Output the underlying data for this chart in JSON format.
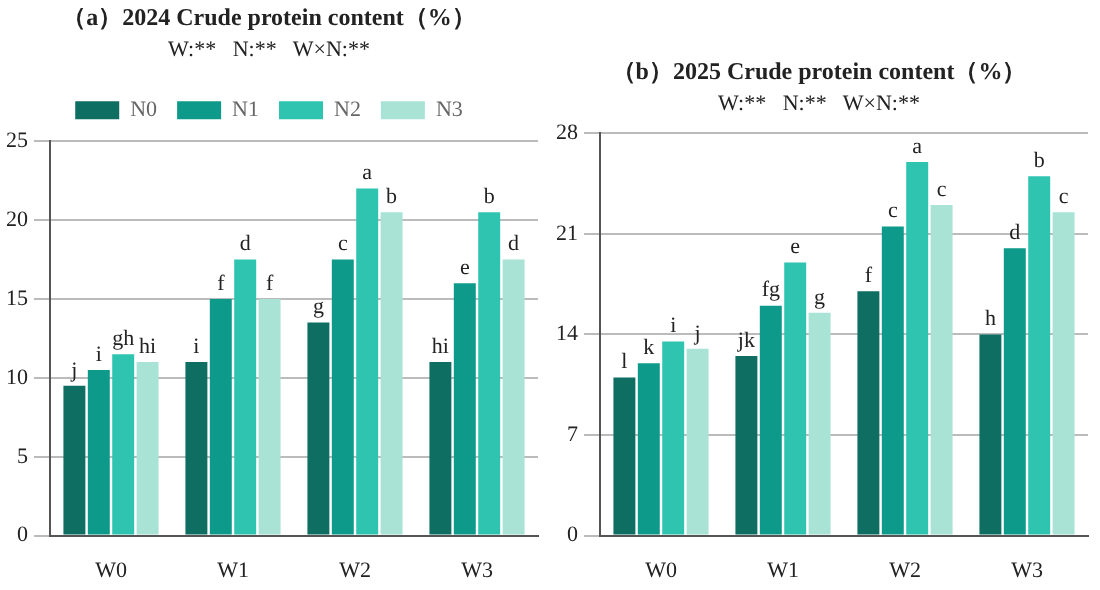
{
  "chart_data": [
    {
      "type": "bar",
      "title": "（a）2024 Crude protein content（%）",
      "subtitle": "W:**   N:**   W×N:**",
      "categories": [
        "W0",
        "W1",
        "W2",
        "W3"
      ],
      "ylim": [
        0,
        25
      ],
      "yticks": [
        0,
        5,
        10,
        15,
        20,
        25
      ],
      "grid": "y",
      "legend": "top",
      "series": [
        {
          "name": "N0",
          "color": "#0e6e62",
          "values": [
            9.5,
            11,
            13.5,
            11
          ],
          "value_labels": [
            "j",
            "i",
            "g",
            "hi"
          ]
        },
        {
          "name": "N1",
          "color": "#0d9a8a",
          "values": [
            10.5,
            15,
            17.5,
            16
          ],
          "value_labels": [
            "i",
            "f",
            "c",
            "e"
          ]
        },
        {
          "name": "N2",
          "color": "#2ec4b0",
          "values": [
            11.5,
            17.5,
            22,
            20.5
          ],
          "value_labels": [
            "gh",
            "d",
            "a",
            "b"
          ]
        },
        {
          "name": "N3",
          "color": "#a8e3d6",
          "values": [
            11,
            15,
            20.5,
            17.5
          ],
          "value_labels": [
            "hi",
            "f",
            "b",
            "d"
          ]
        }
      ]
    },
    {
      "type": "bar",
      "title": "（b）2025 Crude protein content（%）",
      "subtitle": "W:**   N:**   W×N:**",
      "categories": [
        "W0",
        "W1",
        "W2",
        "W3"
      ],
      "ylim": [
        0,
        28
      ],
      "yticks": [
        0,
        7,
        14,
        21,
        28
      ],
      "grid": "y",
      "series": [
        {
          "color": "#0e6e62",
          "values": [
            11,
            12.5,
            17,
            14
          ],
          "value_labels": [
            "l",
            "jk",
            "f",
            "h"
          ]
        },
        {
          "color": "#0d9a8a",
          "values": [
            12,
            16,
            21.5,
            20
          ],
          "value_labels": [
            "k",
            "fg",
            "c",
            "d"
          ]
        },
        {
          "color": "#2ec4b0",
          "values": [
            13.5,
            19,
            26,
            25
          ],
          "value_labels": [
            "i",
            "e",
            "a",
            "b"
          ]
        },
        {
          "color": "#a8e3d6",
          "values": [
            13,
            15.5,
            23,
            22.5
          ],
          "value_labels": [
            "j",
            "g",
            "c",
            "c"
          ]
        }
      ]
    }
  ]
}
